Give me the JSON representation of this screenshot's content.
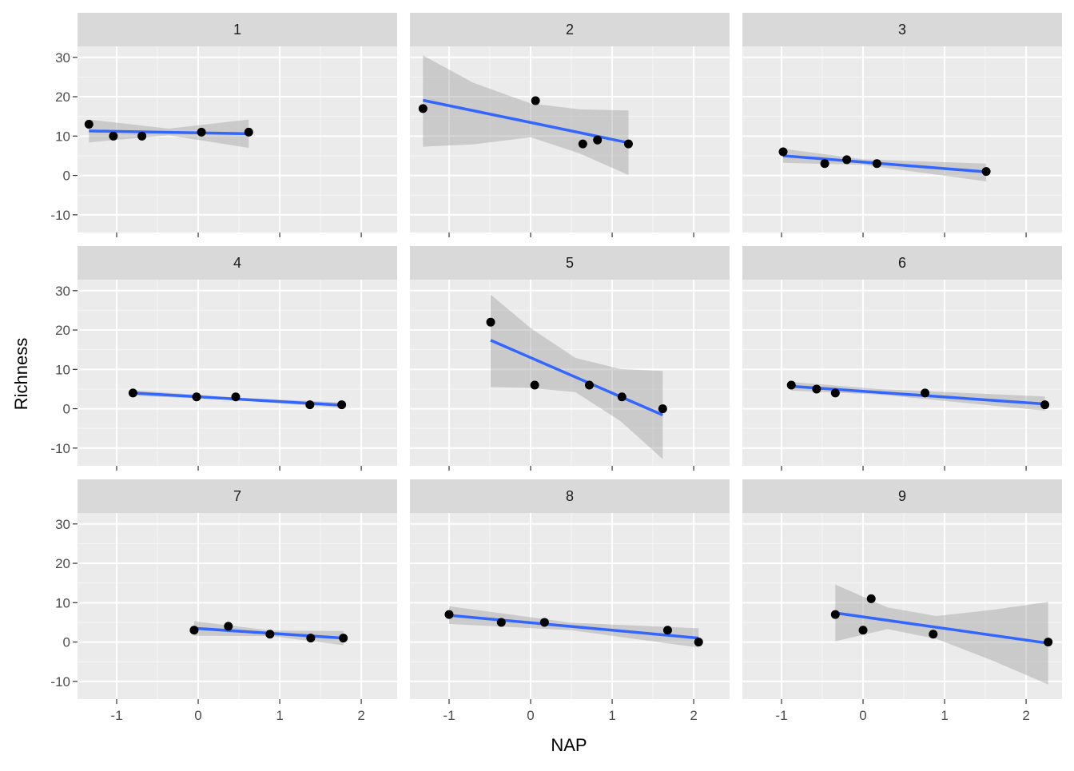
{
  "chart_data": {
    "type": "scatter",
    "title": "",
    "xlabel": "NAP",
    "ylabel": "Richness",
    "xlim": [
      -1.48,
      2.44
    ],
    "ylim": [
      -14.5,
      32.8
    ],
    "x_ticks": [
      -1,
      0,
      1,
      2
    ],
    "x_tick_labels": [
      "-1",
      "0",
      "1",
      "2"
    ],
    "y_ticks": [
      -10,
      0,
      10,
      20,
      30
    ],
    "y_tick_labels": [
      "-10",
      "0",
      "10",
      "20",
      "30"
    ],
    "overlay": "linear fit (lm) with 95% confidence band",
    "colors": {
      "panel_bg": "#ebebeb",
      "strip_bg": "#d9d9d9",
      "grid": "#ffffff",
      "point": "#000000",
      "fit_line": "#3366ff",
      "band": "#999999",
      "tick": "#333333"
    },
    "panels": [
      {
        "label": "1",
        "points": [
          [
            -1.34,
            13
          ],
          [
            -1.04,
            10
          ],
          [
            -0.69,
            10
          ],
          [
            0.04,
            11
          ],
          [
            0.62,
            11
          ]
        ],
        "fit": [
          [
            -1.34,
            11.3
          ],
          [
            0.62,
            10.6
          ]
        ],
        "band_upper": [
          [
            -1.34,
            14.2
          ],
          [
            -0.36,
            11.9
          ],
          [
            0.62,
            14.2
          ]
        ],
        "band_lower": [
          [
            -1.34,
            8.4
          ],
          [
            -0.36,
            10.2
          ],
          [
            0.62,
            7.0
          ]
        ]
      },
      {
        "label": "2",
        "points": [
          [
            -1.32,
            17
          ],
          [
            0.06,
            19
          ],
          [
            0.64,
            8
          ],
          [
            0.82,
            9
          ],
          [
            1.2,
            8
          ]
        ],
        "fit": [
          [
            -1.32,
            19.1
          ],
          [
            1.2,
            8.3
          ]
        ],
        "band_upper": [
          [
            -1.32,
            30.5
          ],
          [
            -0.7,
            23.5
          ],
          [
            0.0,
            18.3
          ],
          [
            0.6,
            16.8
          ],
          [
            1.2,
            16.5
          ]
        ],
        "band_lower": [
          [
            -1.32,
            7.3
          ],
          [
            -0.7,
            7.9
          ],
          [
            0.0,
            9.7
          ],
          [
            0.6,
            5.6
          ],
          [
            1.2,
            0.1
          ]
        ]
      },
      {
        "label": "3",
        "points": [
          [
            -0.98,
            6
          ],
          [
            -0.47,
            3
          ],
          [
            -0.2,
            4
          ],
          [
            0.17,
            3
          ],
          [
            1.51,
            1
          ]
        ],
        "fit": [
          [
            -0.98,
            5.0
          ],
          [
            1.51,
            0.9
          ]
        ],
        "band_upper": [
          [
            -0.98,
            6.8
          ],
          [
            0.0,
            4.1
          ],
          [
            1.51,
            3.0
          ]
        ],
        "band_lower": [
          [
            -0.98,
            3.2
          ],
          [
            0.0,
            2.7
          ],
          [
            1.51,
            -1.5
          ]
        ]
      },
      {
        "label": "4",
        "points": [
          [
            -0.8,
            4
          ],
          [
            -0.02,
            3
          ],
          [
            0.46,
            3
          ],
          [
            1.37,
            1
          ],
          [
            1.76,
            1
          ]
        ],
        "fit": [
          [
            -0.8,
            4.0
          ],
          [
            1.76,
            0.9
          ]
        ],
        "band_upper": [
          [
            -0.8,
            4.7
          ],
          [
            0.5,
            2.8
          ],
          [
            1.76,
            1.6
          ]
        ],
        "band_lower": [
          [
            -0.8,
            3.3
          ],
          [
            0.5,
            2.2
          ],
          [
            1.76,
            0.2
          ]
        ]
      },
      {
        "label": "5",
        "points": [
          [
            -0.49,
            22
          ],
          [
            0.05,
            6
          ],
          [
            0.72,
            6
          ],
          [
            1.12,
            3
          ],
          [
            1.62,
            0
          ]
        ],
        "fit": [
          [
            -0.49,
            17.4
          ],
          [
            1.62,
            -1.6
          ]
        ],
        "band_upper": [
          [
            -0.49,
            29.0
          ],
          [
            0.0,
            20.5
          ],
          [
            0.55,
            12.9
          ],
          [
            1.1,
            10.1
          ],
          [
            1.62,
            9.6
          ]
        ],
        "band_lower": [
          [
            -0.49,
            5.5
          ],
          [
            0.0,
            5.3
          ],
          [
            0.55,
            4.2
          ],
          [
            1.1,
            -3.1
          ],
          [
            1.62,
            -12.8
          ]
        ]
      },
      {
        "label": "6",
        "points": [
          [
            -0.88,
            6
          ],
          [
            -0.57,
            5
          ],
          [
            -0.34,
            4
          ],
          [
            0.76,
            4
          ],
          [
            2.23,
            1
          ]
        ],
        "fit": [
          [
            -0.88,
            5.7
          ],
          [
            2.23,
            1.2
          ]
        ],
        "band_upper": [
          [
            -0.88,
            6.8
          ],
          [
            0.2,
            5.0
          ],
          [
            2.23,
            3.1
          ]
        ],
        "band_lower": [
          [
            -0.88,
            4.6
          ],
          [
            0.2,
            3.6
          ],
          [
            2.23,
            -0.5
          ]
        ]
      },
      {
        "label": "7",
        "points": [
          [
            -0.05,
            3
          ],
          [
            0.37,
            4
          ],
          [
            0.88,
            2
          ],
          [
            1.38,
            1
          ],
          [
            1.78,
            1
          ]
        ],
        "fit": [
          [
            -0.05,
            3.5
          ],
          [
            1.78,
            1.0
          ]
        ],
        "band_upper": [
          [
            -0.05,
            5.3
          ],
          [
            0.9,
            2.9
          ],
          [
            1.78,
            2.8
          ]
        ],
        "band_lower": [
          [
            -0.05,
            1.6
          ],
          [
            0.9,
            1.5
          ],
          [
            1.78,
            -0.8
          ]
        ]
      },
      {
        "label": "8",
        "points": [
          [
            -1.0,
            7
          ],
          [
            -0.36,
            5
          ],
          [
            0.17,
            5
          ],
          [
            1.68,
            3
          ],
          [
            2.06,
            0
          ]
        ],
        "fit": [
          [
            -1.0,
            6.8
          ],
          [
            2.06,
            1.0
          ]
        ],
        "band_upper": [
          [
            -1.0,
            9.1
          ],
          [
            0.5,
            4.9
          ],
          [
            2.06,
            3.5
          ]
        ],
        "band_lower": [
          [
            -1.0,
            4.6
          ],
          [
            0.5,
            3.0
          ],
          [
            2.06,
            -1.4
          ]
        ]
      },
      {
        "label": "9",
        "points": [
          [
            -0.34,
            7
          ],
          [
            0.0,
            3
          ],
          [
            0.1,
            11
          ],
          [
            0.86,
            2
          ],
          [
            2.27,
            0
          ]
        ],
        "fit": [
          [
            -0.34,
            7.4
          ],
          [
            2.27,
            -0.3
          ]
        ],
        "band_upper": [
          [
            -0.34,
            14.6
          ],
          [
            0.3,
            8.8
          ],
          [
            0.9,
            6.6
          ],
          [
            1.6,
            8.2
          ],
          [
            2.27,
            10.2
          ]
        ],
        "band_lower": [
          [
            -0.34,
            0.2
          ],
          [
            0.3,
            3.3
          ],
          [
            0.9,
            0.8
          ],
          [
            1.6,
            -4.8
          ],
          [
            2.27,
            -10.8
          ]
        ]
      }
    ]
  }
}
